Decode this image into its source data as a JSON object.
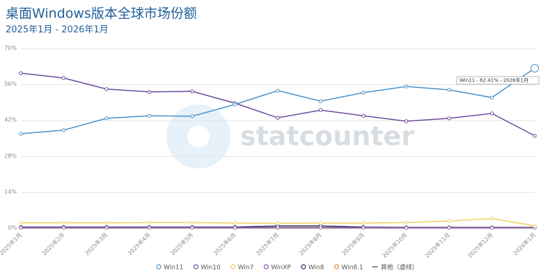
{
  "chart_data": {
    "type": "line",
    "title": "桌面Windows版本全球市场份额",
    "subtitle": "2025年1月 - 2026年1月",
    "watermark": "statcounter",
    "tooltip": "Win11 - 62.41% - 2026年1月",
    "legend_extra": "其他（虚线）",
    "categories": [
      "2025年1月",
      "2025年2月",
      "2025年3月",
      "2025年4月",
      "2025年5月",
      "2025年6月",
      "2025年7月",
      "2025年8月",
      "2025年9月",
      "2025年10月",
      "2025年11月",
      "2025年12月",
      "2026年1月"
    ],
    "series": [
      {
        "name": "Win11",
        "color": "#4a90c8",
        "values": [
          36.9,
          38.3,
          42.9,
          43.9,
          43.7,
          48.3,
          53.7,
          49.6,
          52.9,
          55.3,
          54.0,
          51.0,
          62.41
        ]
      },
      {
        "name": "Win10",
        "color": "#6a4a9c",
        "values": [
          60.5,
          58.6,
          54.3,
          53.2,
          53.4,
          48.8,
          43.1,
          46.1,
          43.9,
          41.8,
          42.9,
          44.8,
          36.1
        ]
      },
      {
        "name": "Win7",
        "color": "#f0d060",
        "values": [
          2.2,
          2.2,
          2.2,
          2.3,
          2.3,
          2.1,
          2.0,
          2.1,
          2.1,
          2.3,
          2.9,
          3.9,
          1.0
        ]
      },
      {
        "name": "WinXP",
        "color": "#8a5aa8",
        "values": [
          0.3,
          0.3,
          0.3,
          0.3,
          0.3,
          0.3,
          0.3,
          0.3,
          0.3,
          0.3,
          0.3,
          0.3,
          0.3
        ]
      },
      {
        "name": "Win8",
        "color": "#2a2a6a",
        "values": [
          0.5,
          0.5,
          0.5,
          0.5,
          0.5,
          0.5,
          1.0,
          1.0,
          0.5,
          0.4,
          0.4,
          0.4,
          0.4
        ]
      },
      {
        "name": "Win8.1",
        "color": "#e08a30",
        "values": [
          0.4,
          0.4,
          0.4,
          0.4,
          0.4,
          0.4,
          0.4,
          0.4,
          0.4,
          0.4,
          0.4,
          0.4,
          0.4
        ]
      }
    ],
    "ylim": [
      0,
      70
    ],
    "yticks": [
      {
        "value": 0,
        "label": "0%"
      },
      {
        "value": 14,
        "label": "14%"
      },
      {
        "value": 28,
        "label": "28%"
      },
      {
        "value": 42,
        "label": "42%"
      },
      {
        "value": 56,
        "label": "56%"
      },
      {
        "value": 70,
        "label": "70%"
      }
    ],
    "grid": true
  }
}
